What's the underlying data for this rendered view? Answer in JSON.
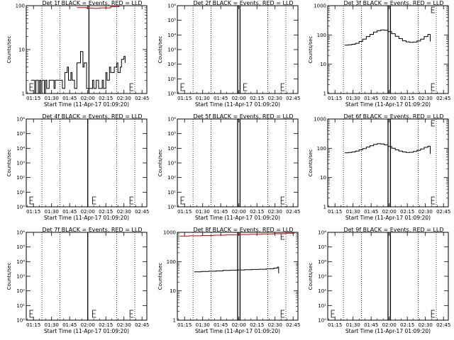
{
  "colors": {
    "events": "#000000",
    "lld": "#cc0000",
    "background": "#ffffff"
  },
  "x_ticks": [
    "01:15",
    "01:30",
    "01:45",
    "02:00",
    "02:15",
    "02:30",
    "02:45"
  ],
  "x_label": "Start Time (11-Apr-17 01:09:20)",
  "y_label": "Counts/sec",
  "chart_data": [
    {
      "type": "line",
      "title": "Det 1f BLACK = Events, RED = LLD",
      "yscale": "log",
      "ylim": [
        1,
        100
      ],
      "yticks": [
        "1",
        "10",
        "100"
      ],
      "xlim_minutes": [
        0,
        100
      ],
      "markers": {
        "solid": [
          52
        ],
        "dotted": [
          13,
          28,
          75,
          90
        ],
        "e_letters": [
          3,
          86
        ]
      },
      "series": [
        {
          "color": "red",
          "x": [
            42,
            50,
            55,
            61,
            70,
            77
          ],
          "y": [
            90,
            88,
            87,
            89,
            95,
            100
          ]
        },
        {
          "color": "black",
          "x": [
            4,
            6,
            7,
            8,
            10,
            11,
            12,
            13,
            15,
            16,
            17,
            19,
            21,
            23,
            24,
            26,
            28,
            30,
            32,
            34,
            35,
            37,
            38,
            40,
            42,
            45,
            47,
            48,
            50,
            53,
            55,
            56,
            58,
            60,
            61,
            63,
            64,
            66,
            67,
            69,
            70,
            72,
            73,
            75,
            76,
            78,
            79,
            81,
            82
          ],
          "y": [
            2,
            2,
            1,
            2,
            1,
            2,
            1,
            2,
            1,
            2,
            1.3,
            2,
            2,
            1.3,
            2,
            2,
            2,
            1.3,
            3,
            4,
            2,
            3,
            2,
            1.3,
            5,
            9,
            4,
            5,
            1.3,
            1.3,
            2,
            1.3,
            2,
            1.3,
            1.3,
            2,
            1.3,
            3,
            2,
            4,
            3,
            3,
            4,
            5,
            3,
            4,
            6,
            7,
            5
          ]
        }
      ]
    },
    {
      "type": "line",
      "title": "Det 2f BLACK = Events, RED = LLD",
      "yscale": "log",
      "ylim": [
        1,
        1000000
      ],
      "yticks": [
        "10⁰",
        "10¹",
        "10²",
        "10³",
        "10⁴",
        "10⁵",
        "10⁶"
      ],
      "xlim_minutes": [
        0,
        100
      ],
      "markers": {
        "solid": [
          50,
          52
        ],
        "dotted": [
          13,
          28,
          75,
          90
        ],
        "e_letters": [
          3,
          55,
          86
        ]
      },
      "series": []
    },
    {
      "type": "line",
      "title": "Det 3f BLACK = Events, RED = LLD",
      "yscale": "log",
      "ylim": [
        1,
        1000
      ],
      "yticks": [
        "1",
        "10",
        "100",
        "1000"
      ],
      "xlim_minutes": [
        0,
        100
      ],
      "markers": {
        "solid": [
          50,
          52
        ],
        "dotted": [
          13,
          28,
          75,
          90
        ],
        "e_letters": [
          86
        ]
      },
      "series": [
        {
          "color": "black",
          "x": [
            14,
            17,
            20,
            23,
            26,
            29,
            32,
            35,
            38,
            41,
            44,
            47,
            50,
            53,
            56,
            59,
            62,
            65,
            68,
            71,
            74,
            77,
            80,
            83,
            85
          ],
          "y": [
            45,
            46,
            48,
            52,
            60,
            72,
            88,
            105,
            125,
            140,
            148,
            145,
            130,
            110,
            90,
            75,
            63,
            58,
            56,
            57,
            62,
            72,
            88,
            105,
            60
          ]
        }
      ]
    },
    {
      "type": "line",
      "title": "Det 4f BLACK = Events, RED = LLD",
      "yscale": "log",
      "ylim": [
        1,
        1000000
      ],
      "yticks": [
        "10⁰",
        "10¹",
        "10²",
        "10³",
        "10⁴",
        "10⁵",
        "10⁶"
      ],
      "xlim_minutes": [
        0,
        100
      ],
      "markers": {
        "solid": [
          51
        ],
        "dotted": [
          13,
          28,
          75,
          90
        ],
        "e_letters": [
          3,
          55,
          86
        ]
      },
      "series": []
    },
    {
      "type": "line",
      "title": "Det 5f BLACK = Events, RED = LLD",
      "yscale": "log",
      "ylim": [
        1,
        1000000
      ],
      "yticks": [
        "10⁰",
        "10¹",
        "10²",
        "10³",
        "10⁴",
        "10⁵",
        "10⁶"
      ],
      "xlim_minutes": [
        0,
        100
      ],
      "markers": {
        "solid": [
          50,
          52
        ],
        "dotted": [
          13,
          28,
          75,
          90
        ],
        "e_letters": [
          3,
          86
        ]
      },
      "series": []
    },
    {
      "type": "line",
      "title": "Det 6f BLACK = Events, RED = LLD",
      "yscale": "log",
      "ylim": [
        1,
        1000
      ],
      "yticks": [
        "1",
        "10",
        "100",
        "1000"
      ],
      "xlim_minutes": [
        0,
        100
      ],
      "markers": {
        "solid": [
          50,
          52
        ],
        "dotted": [
          13,
          28,
          75,
          90
        ],
        "e_letters": [
          86
        ]
      },
      "series": [
        {
          "color": "black",
          "x": [
            14,
            17,
            20,
            23,
            26,
            29,
            32,
            35,
            38,
            41,
            44,
            47,
            50,
            53,
            56,
            59,
            62,
            65,
            68,
            71,
            74,
            77,
            80,
            83,
            85
          ],
          "y": [
            70,
            72,
            75,
            80,
            88,
            98,
            110,
            122,
            135,
            143,
            140,
            130,
            115,
            100,
            88,
            80,
            75,
            72,
            73,
            78,
            85,
            95,
            108,
            118,
            65
          ]
        }
      ]
    },
    {
      "type": "line",
      "title": "Det 7f BLACK = Events, RED = LLD",
      "yscale": "log",
      "ylim": [
        1,
        1000000
      ],
      "yticks": [
        "10⁰",
        "10¹",
        "10²",
        "10³",
        "10⁴",
        "10⁵",
        "10⁶"
      ],
      "xlim_minutes": [
        0,
        100
      ],
      "markers": {
        "solid": [
          51
        ],
        "dotted": [
          13,
          28,
          75,
          90
        ],
        "e_letters": [
          3,
          55,
          86
        ]
      },
      "series": []
    },
    {
      "type": "line",
      "title": "Det 8f BLACK = Events, RED = LLD",
      "yscale": "log",
      "ylim": [
        1,
        1000
      ],
      "yticks": [
        "1",
        "10",
        "100",
        "1000"
      ],
      "xlim_minutes": [
        0,
        100
      ],
      "markers": {
        "solid": [
          50,
          52
        ],
        "dotted": [
          13,
          28,
          75,
          90
        ],
        "e_letters": [
          86
        ]
      },
      "series": [
        {
          "color": "red",
          "x": [
            2,
            10,
            20,
            30,
            40,
            50,
            60,
            70,
            80,
            90,
            97
          ],
          "y": [
            750,
            760,
            780,
            800,
            820,
            840,
            860,
            880,
            900,
            930,
            960
          ]
        },
        {
          "color": "black",
          "x": [
            14,
            20,
            26,
            32,
            38,
            44,
            50,
            56,
            62,
            68,
            74,
            80,
            83,
            84
          ],
          "y": [
            45,
            46,
            47,
            48,
            50,
            51,
            52,
            53,
            54,
            55,
            57,
            60,
            65,
            40
          ]
        }
      ]
    },
    {
      "type": "line",
      "title": "Det 9f BLACK = Events, RED = LLD",
      "yscale": "log",
      "ylim": [
        1,
        1000000
      ],
      "yticks": [
        "10⁰",
        "10¹",
        "10²",
        "10³",
        "10⁴",
        "10⁵",
        "10⁶"
      ],
      "xlim_minutes": [
        0,
        100
      ],
      "markers": {
        "solid": [
          50,
          52
        ],
        "dotted": [
          13,
          28,
          75,
          90
        ],
        "e_letters": [
          3,
          86
        ]
      },
      "series": []
    }
  ]
}
